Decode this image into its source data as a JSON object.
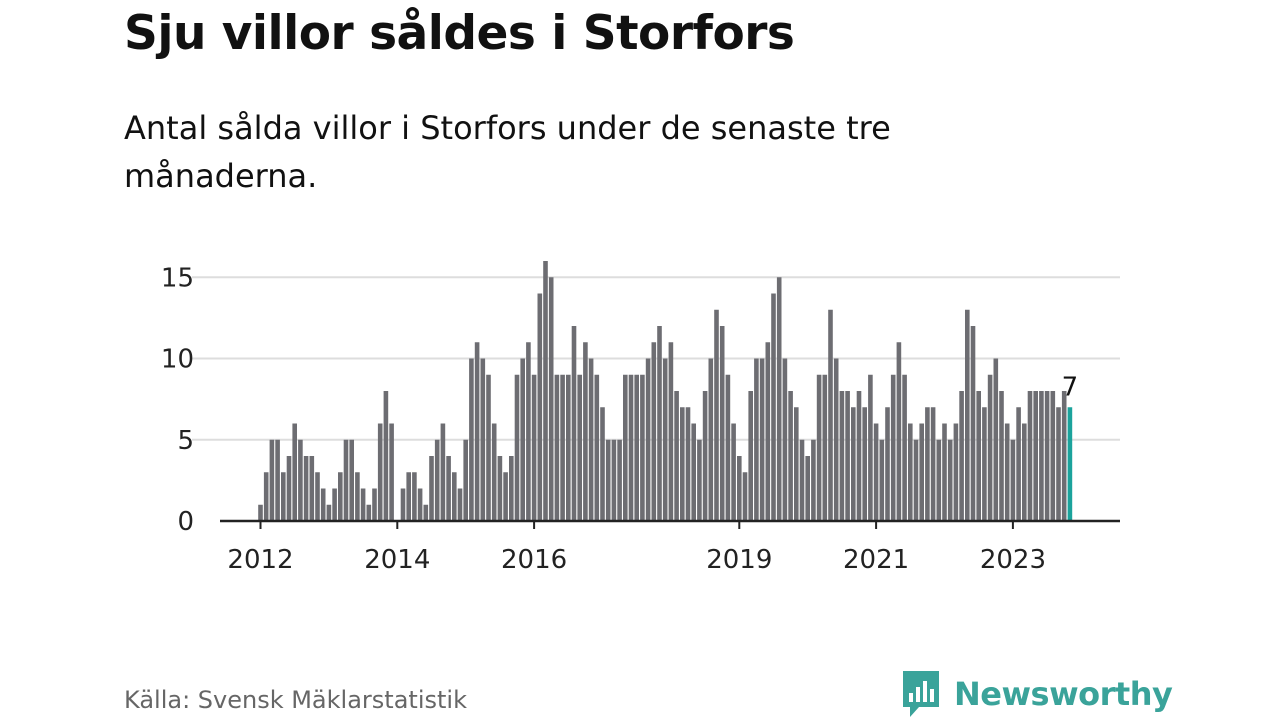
{
  "title": "Sju villor såldes i Storfors",
  "subtitle": "Antal sålda villor i Storfors under de senaste tre månaderna.",
  "source": "Källa: Svensk Mäklarstatistik",
  "brand": {
    "name": "Newsworthy",
    "icon": "newsworthy-logo-icon",
    "color": "#3aa39a"
  },
  "colors": {
    "bar": "#6d6d72",
    "highlight": "#1ba39c",
    "grid": "#dddddd",
    "axis": "#222222"
  },
  "chart_data": {
    "type": "bar",
    "title": "Sju villor såldes i Storfors",
    "xlabel": "",
    "ylabel": "",
    "ylim": [
      0,
      16
    ],
    "yticks": [
      0,
      5,
      10,
      15
    ],
    "grid": true,
    "start": "2012-01",
    "end": "2024-01",
    "x_ticks": [
      {
        "label": "2012",
        "date": "2012-01"
      },
      {
        "label": "2014",
        "date": "2014-01"
      },
      {
        "label": "2016",
        "date": "2016-01"
      },
      {
        "label": "2019",
        "date": "2019-01"
      },
      {
        "label": "2021",
        "date": "2021-01"
      },
      {
        "label": "2023",
        "date": "2023-01"
      }
    ],
    "last_value_label": "7",
    "values": [
      1,
      3,
      5,
      5,
      3,
      4,
      6,
      5,
      4,
      4,
      3,
      2,
      1,
      2,
      3,
      5,
      5,
      3,
      2,
      1,
      2,
      6,
      8,
      6,
      0,
      2,
      3,
      3,
      2,
      1,
      4,
      5,
      6,
      4,
      3,
      2,
      5,
      10,
      11,
      10,
      9,
      6,
      4,
      3,
      4,
      9,
      10,
      11,
      9,
      14,
      16,
      15,
      9,
      9,
      9,
      12,
      9,
      11,
      10,
      9,
      7,
      5,
      5,
      5,
      9,
      9,
      9,
      9,
      10,
      11,
      12,
      10,
      11,
      8,
      7,
      7,
      6,
      5,
      8,
      10,
      13,
      12,
      9,
      6,
      4,
      3,
      8,
      10,
      10,
      11,
      14,
      15,
      10,
      8,
      7,
      5,
      4,
      5,
      9,
      9,
      13,
      10,
      8,
      8,
      7,
      8,
      7,
      9,
      6,
      5,
      7,
      9,
      11,
      9,
      6,
      5,
      6,
      7,
      7,
      5,
      6,
      5,
      6,
      8,
      13,
      12,
      8,
      7,
      9,
      10,
      8,
      6,
      5,
      7,
      6,
      8,
      8,
      8,
      8,
      8,
      7,
      8,
      7
    ]
  }
}
